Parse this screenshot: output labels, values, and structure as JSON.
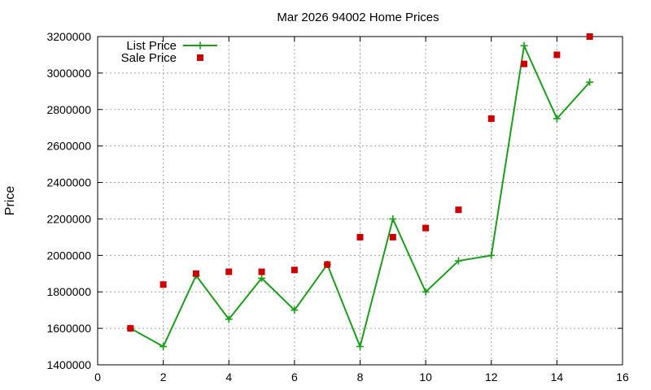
{
  "chart_data": {
    "type": "line",
    "title": "Mar 2026 94002 Home Prices",
    "xlabel": "",
    "ylabel": "Price",
    "xlim": [
      0,
      16
    ],
    "ylim": [
      1400000,
      3200000
    ],
    "x_ticks": [
      0,
      2,
      4,
      6,
      8,
      10,
      12,
      14,
      16
    ],
    "y_ticks": [
      1400000,
      1600000,
      1800000,
      2000000,
      2200000,
      2400000,
      2600000,
      2800000,
      3000000,
      3200000
    ],
    "grid": true,
    "legend_position": "top-left",
    "series": [
      {
        "name": "List Price",
        "style": "line-with-plus-markers",
        "color": "#1a9e1a",
        "x": [
          1,
          2,
          3,
          4,
          5,
          6,
          7,
          8,
          9,
          10,
          11,
          12,
          13,
          14,
          15
        ],
        "values": [
          1600000,
          1500000,
          1890000,
          1650000,
          1875000,
          1700000,
          1950000,
          1500000,
          2200000,
          1800000,
          1970000,
          2000000,
          3150000,
          2750000,
          2950000
        ]
      },
      {
        "name": "Sale Price",
        "style": "square-markers",
        "color": "#cc0000",
        "x": [
          1,
          2,
          3,
          4,
          5,
          6,
          7,
          8,
          9,
          10,
          11,
          12,
          13,
          14,
          15
        ],
        "values": [
          1600000,
          1840000,
          1900000,
          1910000,
          1910000,
          1920000,
          1950000,
          2100000,
          2100000,
          2150000,
          2250000,
          2750000,
          3050000,
          3100000,
          3200000
        ]
      }
    ]
  }
}
